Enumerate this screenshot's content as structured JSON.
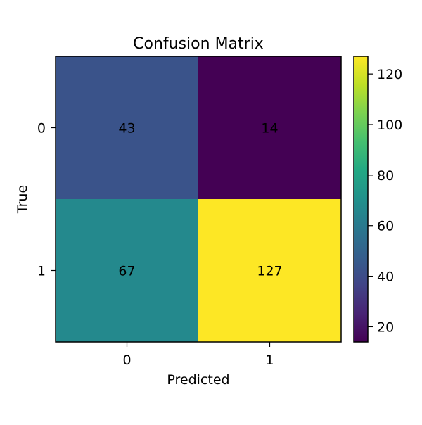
{
  "chart_data": {
    "type": "heatmap",
    "title": "Confusion Matrix",
    "xlabel": "Predicted",
    "ylabel": "True",
    "x_categories": [
      "0",
      "1"
    ],
    "y_categories": [
      "0",
      "1"
    ],
    "values": [
      [
        43,
        14
      ],
      [
        67,
        127
      ]
    ],
    "colormap": "viridis",
    "colorbar": {
      "range": [
        14,
        127
      ],
      "ticks": [
        20,
        40,
        60,
        80,
        100,
        120
      ]
    },
    "grid": false
  }
}
